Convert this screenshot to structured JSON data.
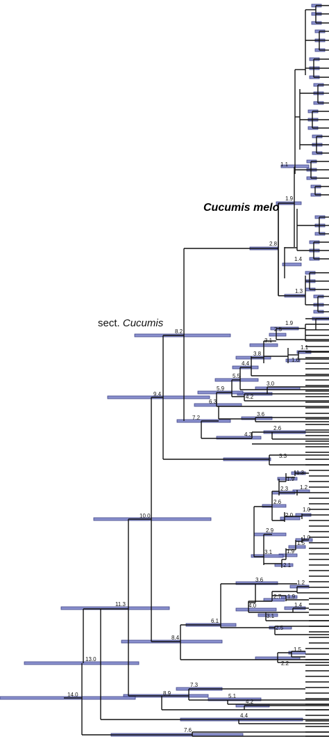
{
  "clades": {
    "section_prefix": "sect.",
    "section_name": "Cucumis",
    "species": "Cucumis melo"
  },
  "node_ages": [
    {
      "id": "n1_1",
      "age": "1.1"
    },
    {
      "id": "n1_9a",
      "age": "1.9"
    },
    {
      "id": "n2_8",
      "age": "2.8"
    },
    {
      "id": "n1_4",
      "age": "1.4"
    },
    {
      "id": "n1_3",
      "age": "1.3"
    },
    {
      "id": "n8_2",
      "age": "8.2"
    },
    {
      "id": "n1_9b",
      "age": "1.9"
    },
    {
      "id": "n2_5a",
      "age": "2.5"
    },
    {
      "id": "n3_1a",
      "age": "3.1"
    },
    {
      "id": "n1_1b",
      "age": "1.1"
    },
    {
      "id": "n3_8",
      "age": "3.8"
    },
    {
      "id": "n1_6",
      "age": "1.6"
    },
    {
      "id": "n4_4a",
      "age": "4.4"
    },
    {
      "id": "n5_5",
      "age": "5.5"
    },
    {
      "id": "n9_4",
      "age": "9.4"
    },
    {
      "id": "n5_9",
      "age": "5.9"
    },
    {
      "id": "n3_0",
      "age": "3.0"
    },
    {
      "id": "n4_2a",
      "age": "4.2"
    },
    {
      "id": "n6_3",
      "age": "6.3"
    },
    {
      "id": "n3_6a",
      "age": "3.6"
    },
    {
      "id": "n7_2",
      "age": "7.2"
    },
    {
      "id": "n2_6a",
      "age": "2.6"
    },
    {
      "id": "n4_3",
      "age": "4.3"
    },
    {
      "id": "n3_3",
      "age": "3.3"
    },
    {
      "id": "n1_3b",
      "age": "1.3"
    },
    {
      "id": "n1_9c",
      "age": "1.9"
    },
    {
      "id": "n2_3",
      "age": "2.3"
    },
    {
      "id": "n1_2a",
      "age": "1.2"
    },
    {
      "id": "n10_0",
      "age": "10.0"
    },
    {
      "id": "n2_6b",
      "age": "2.6"
    },
    {
      "id": "n1_0a",
      "age": "1.0"
    },
    {
      "id": "n2_0",
      "age": "2.0"
    },
    {
      "id": "n2_9",
      "age": "2.9"
    },
    {
      "id": "n1_0b",
      "age": "1.0"
    },
    {
      "id": "n1_5a",
      "age": "1.5"
    },
    {
      "id": "n3_1b",
      "age": "3.1"
    },
    {
      "id": "n1_9d",
      "age": "1.9"
    },
    {
      "id": "n2_1",
      "age": "2.1"
    },
    {
      "id": "n3_6b",
      "age": "3.6"
    },
    {
      "id": "n1_2b",
      "age": "1.2"
    },
    {
      "id": "n2_7",
      "age": "2.7"
    },
    {
      "id": "n1_9e",
      "age": "1.9"
    },
    {
      "id": "n11_3",
      "age": "11.3"
    },
    {
      "id": "n4_0",
      "age": "4.0"
    },
    {
      "id": "n1_4b",
      "age": "1.4"
    },
    {
      "id": "n3_1c",
      "age": "3.1"
    },
    {
      "id": "n6_1",
      "age": "6.1"
    },
    {
      "id": "n2_5b",
      "age": "2.5"
    },
    {
      "id": "n8_4",
      "age": "8.4"
    },
    {
      "id": "n1_5b",
      "age": "1.5"
    },
    {
      "id": "n13_0",
      "age": "13.0"
    },
    {
      "id": "n2_2",
      "age": "2.2"
    },
    {
      "id": "n5_1",
      "age": "5.1"
    },
    {
      "id": "n7_3",
      "age": "7.3"
    },
    {
      "id": "n8_9",
      "age": "8.9"
    },
    {
      "id": "n14_0",
      "age": "14.0"
    },
    {
      "id": "n4_2b",
      "age": "4.2"
    },
    {
      "id": "n4_4b",
      "age": "4.4"
    },
    {
      "id": "n7_6",
      "age": "7.6"
    }
  ]
}
